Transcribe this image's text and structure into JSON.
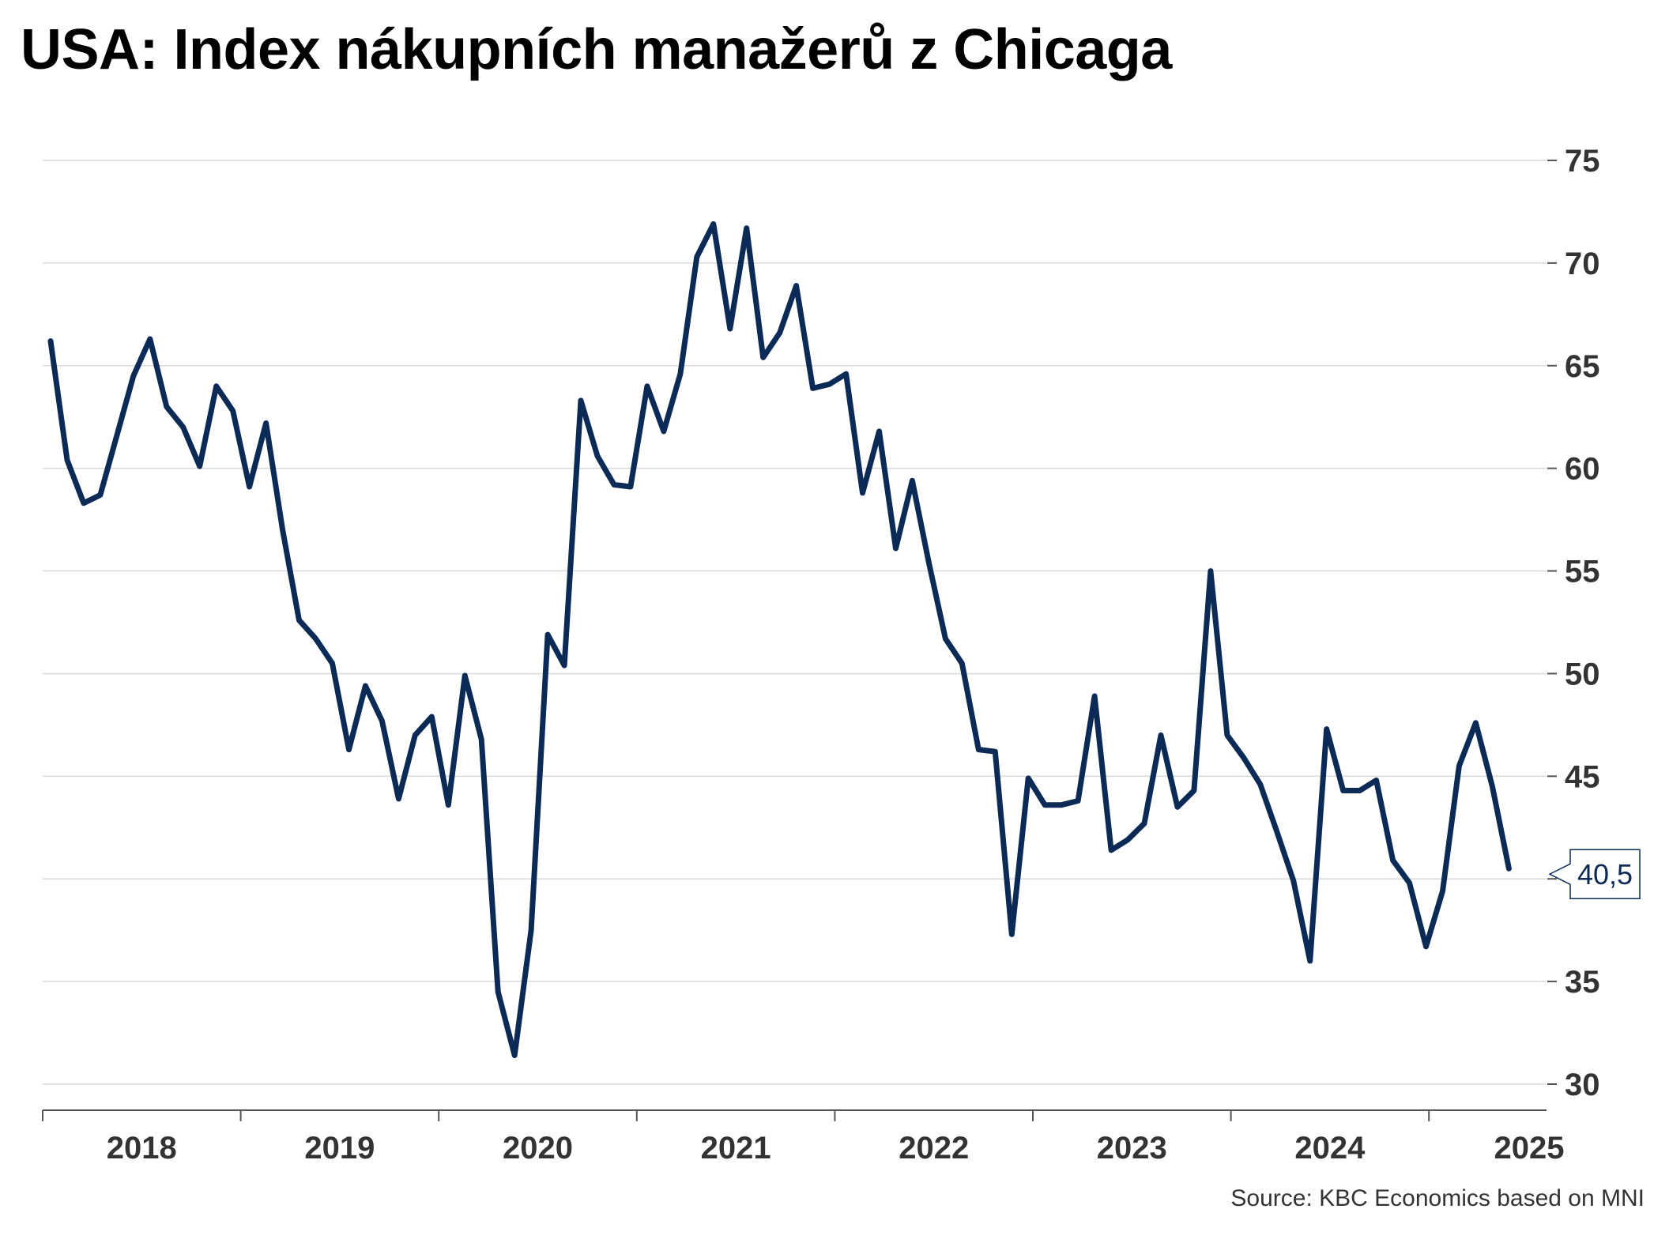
{
  "chart_data": {
    "type": "line",
    "title": "USA: Index nákupních manažerů z Chicaga",
    "source": "Source: KBC Economics based on MNI",
    "xlabel": "",
    "ylabel": "",
    "y_axis_side": "right",
    "ylim": [
      30,
      75
    ],
    "yticks": [
      30,
      35,
      40,
      45,
      50,
      55,
      60,
      65,
      70,
      75
    ],
    "y_tick_labels": [
      "30",
      "35",
      "",
      "45",
      "50",
      "55",
      "60",
      "65",
      "70",
      "75"
    ],
    "x_year_ticks": [
      "2018",
      "2019",
      "2020",
      "2021",
      "2022",
      "2023",
      "2024",
      "2025"
    ],
    "grid": true,
    "line_color": "#0b2a55",
    "last_value_label": "40,5",
    "series": [
      {
        "values": [
          66.2,
          60.4,
          58.3,
          58.7,
          61.6,
          64.5,
          66.3,
          63.0,
          62.0,
          60.1,
          64.0,
          62.8,
          59.1,
          62.2,
          57.0,
          52.6,
          51.7,
          50.5,
          46.3,
          49.4,
          47.7,
          43.9,
          47.0,
          47.9,
          43.6,
          49.9,
          46.8,
          34.5,
          31.4,
          37.5,
          51.9,
          50.4,
          63.3,
          60.6,
          59.2,
          59.1,
          64.0,
          61.8,
          64.6,
          70.3,
          71.9,
          66.8,
          71.7,
          65.4,
          66.6,
          68.9,
          63.9,
          64.1,
          64.6,
          58.8,
          61.8,
          56.1,
          59.4,
          55.4,
          51.7,
          50.5,
          46.3,
          46.2,
          37.3,
          44.9,
          43.6,
          43.6,
          43.8,
          48.9,
          41.4,
          41.9,
          42.7,
          47.0,
          43.5,
          44.3,
          55.0,
          47.0,
          45.9,
          44.6,
          42.3,
          39.9,
          36.0,
          47.3,
          44.3,
          44.3,
          44.8,
          40.9,
          39.8,
          36.7,
          39.4,
          45.5,
          47.6,
          44.5,
          40.5
        ]
      }
    ]
  }
}
